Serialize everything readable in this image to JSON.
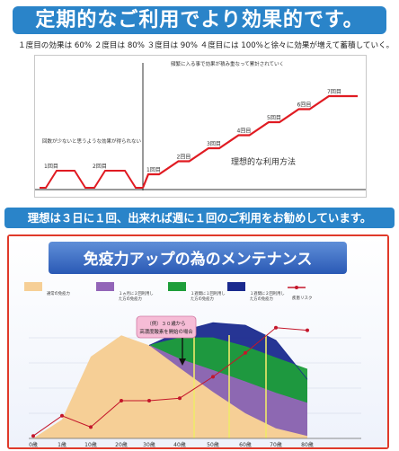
{
  "header": {
    "title": "定期的なご利用でより効果的です。",
    "description": "１度目の効果は 60% ２度目は 80% ３度目は 90% ４度目には 100%と徐々に効果が増えて蓄積していく。"
  },
  "banner2": {
    "text": "理想は３日に１回、出来れば週に１回のご利用をお勧めしています。"
  },
  "panel1": {
    "left_note": "回数が少ないと思うような効果が得られない",
    "right_note": "頻繁に入る事で効果が積み重なって累計されていく",
    "ideal_label": "理想的な利用方法",
    "left_steps": [
      "1回目",
      "2回目"
    ],
    "right_steps": [
      "1回目",
      "2回目",
      "3回目",
      "4回目",
      "5回目",
      "6回目",
      "7回目"
    ]
  },
  "panel2": {
    "title": "免疫力アップの為のメンテナンス",
    "callout_line1": "（例）３０歳から",
    "callout_line2": "高濃度酸素を開始の場合",
    "legend": [
      {
        "label": "通常の免疫力",
        "color": "#f6cf96"
      },
      {
        "label": "１ヵ月に２回利用した方の免疫力",
        "color": "#9365b8"
      },
      {
        "label": "１週間に１回利用した方の免疫力",
        "color": "#1e9e3a"
      },
      {
        "label": "１週間に２回利用した方の免疫力",
        "color": "#1a2a8e"
      },
      {
        "label": "疾患リスク",
        "color": "#c4162a"
      }
    ]
  },
  "chart_data": [
    {
      "type": "line",
      "title": "",
      "series": [
        {
          "name": "",
          "x": [
            1,
            2
          ],
          "y": [
            1,
            1
          ]
        },
        {
          "name": "",
          "x": [
            1,
            2,
            3,
            4,
            5,
            6,
            7
          ],
          "y": [
            1,
            2,
            3,
            4,
            5,
            6,
            7
          ]
        }
      ],
      "annotations": [
        "回数が少ないと思うような効果が得られない",
        "頻繁に入る事で効果が積み重なって累計されていく",
        "理想的な利用方法"
      ]
    },
    {
      "type": "area",
      "title": "免疫力アップの為のメンテナンス",
      "categories": [
        "0歳",
        "1歳",
        "10歳",
        "20歳",
        "30歳",
        "40歳",
        "50歳",
        "60歳",
        "70歳",
        "80歳"
      ],
      "series": [
        {
          "name": "通常の免疫力",
          "values": [
            0,
            15,
            65,
            82,
            74,
            56,
            37,
            20,
            8,
            2
          ]
        },
        {
          "name": "１ヵ月に２回利用した方の免疫力",
          "values": [
            null,
            null,
            null,
            null,
            74,
            63,
            54,
            45,
            36,
            28
          ]
        },
        {
          "name": "１週間に１回利用した方の免疫力",
          "values": [
            null,
            null,
            null,
            null,
            74,
            80,
            80,
            73,
            64,
            55
          ]
        },
        {
          "name": "１週間に２回利用した方の免疫力",
          "values": [
            null,
            null,
            null,
            null,
            74,
            85,
            92,
            90,
            78,
            47
          ]
        },
        {
          "name": "疾患リスク",
          "values": [
            2,
            18,
            9,
            30,
            30,
            32,
            49,
            68,
            88,
            86
          ]
        }
      ],
      "callout": "（例）３０歳から 高濃度酸素を開始の場合"
    }
  ]
}
